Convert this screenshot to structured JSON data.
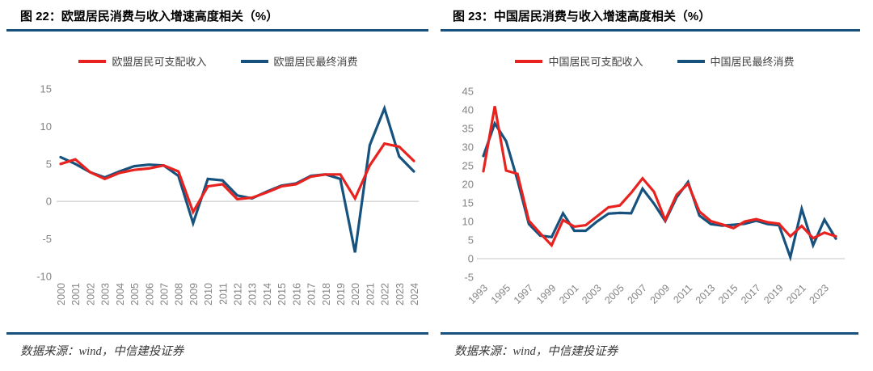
{
  "colors": {
    "red": "#e8231f",
    "blue": "#17527e",
    "rule": "#17527e",
    "axis_text": "#848484",
    "gridline": "#d9d9d9",
    "title_text": "#000000",
    "legend_text": "#404040",
    "source_text": "#3a3a3a"
  },
  "panels": [
    {
      "title": "图 22：欧盟居民消费与收入增速高度相关（%）",
      "legend": [
        {
          "label": "欧盟居民可支配收入",
          "color": "#e8231f"
        },
        {
          "label": "欧盟居民最终消费",
          "color": "#17527e"
        }
      ],
      "source": "数据来源：wind，中信建投证券"
    },
    {
      "title": "图 23：中国居民消费与收入增速高度相关（%）",
      "legend": [
        {
          "label": "中国居民可支配收入",
          "color": "#e8231f"
        },
        {
          "label": "中国居民最终消费",
          "color": "#17527e"
        }
      ],
      "source": "数据来源：wind，中信建投证券"
    }
  ],
  "chart_data": [
    {
      "type": "line",
      "title": "图 22：欧盟居民消费与收入增速高度相关（%）",
      "x": [
        2000,
        2001,
        2002,
        2003,
        2004,
        2005,
        2006,
        2007,
        2008,
        2009,
        2010,
        2011,
        2012,
        2013,
        2014,
        2015,
        2016,
        2017,
        2018,
        2019,
        2020,
        2021,
        2022,
        2023,
        2024
      ],
      "series": [
        {
          "name": "欧盟居民可支配收入",
          "color": "#e8231f",
          "values": [
            5.0,
            5.6,
            3.9,
            3.0,
            3.8,
            4.2,
            4.4,
            4.8,
            4.0,
            -1.4,
            2.0,
            2.3,
            0.3,
            0.5,
            1.2,
            2.0,
            2.3,
            3.3,
            3.6,
            3.6,
            0.4,
            4.8,
            7.7,
            7.3,
            5.4
          ]
        },
        {
          "name": "欧盟居民最终消费",
          "color": "#17527e",
          "values": [
            5.9,
            5.0,
            3.9,
            3.2,
            4.0,
            4.7,
            4.9,
            4.8,
            3.4,
            -2.9,
            3.0,
            2.8,
            0.8,
            0.4,
            1.3,
            2.1,
            2.4,
            3.4,
            3.6,
            3.0,
            -6.8,
            7.5,
            12.4,
            6.0,
            4.0
          ]
        }
      ],
      "ylim": [
        -10,
        15
      ],
      "yticks": [
        15,
        10,
        5,
        0,
        -5,
        -10
      ],
      "xtick_every": 1,
      "xtick_rotation": -90,
      "grid": "zero-line-only",
      "legend_position": "top"
    },
    {
      "type": "line",
      "title": "图 23：中国居民消费与收入增速高度相关（%）",
      "x": [
        1993,
        1994,
        1995,
        1996,
        1997,
        1998,
        1999,
        2000,
        2001,
        2002,
        2003,
        2004,
        2005,
        2006,
        2007,
        2008,
        2009,
        2010,
        2011,
        2012,
        2013,
        2014,
        2015,
        2016,
        2017,
        2018,
        2019,
        2020,
        2021,
        2022,
        2023,
        2024
      ],
      "series": [
        {
          "name": "中国居民可支配收入",
          "color": "#e8231f",
          "values": [
            23.5,
            41.0,
            23.7,
            22.8,
            10.2,
            6.8,
            3.6,
            10.4,
            8.6,
            9.0,
            11.4,
            13.8,
            14.3,
            17.7,
            21.6,
            18.0,
            10.4,
            17.2,
            20.1,
            12.7,
            10.1,
            9.2,
            8.2,
            10.0,
            10.6,
            9.8,
            9.4,
            6.0,
            8.8,
            5.5,
            7.0,
            6.0
          ]
        },
        {
          "name": "中国居民最终消费",
          "color": "#17527e",
          "values": [
            27.6,
            36.4,
            31.6,
            21.1,
            9.3,
            6.2,
            5.8,
            12.2,
            7.5,
            7.5,
            10.0,
            12.1,
            12.3,
            12.2,
            18.8,
            14.8,
            10.1,
            16.5,
            20.6,
            11.6,
            9.3,
            8.9,
            9.1,
            9.4,
            10.2,
            9.3,
            9.0,
            0.4,
            13.4,
            3.6,
            10.5,
            5.4
          ]
        }
      ],
      "ylim": [
        -5,
        45
      ],
      "yticks": [
        45,
        40,
        35,
        30,
        25,
        20,
        15,
        10,
        5,
        0,
        -5
      ],
      "xtick_every": 2,
      "xtick_rotation": -45,
      "grid": "zero-line-only",
      "legend_position": "top"
    }
  ]
}
